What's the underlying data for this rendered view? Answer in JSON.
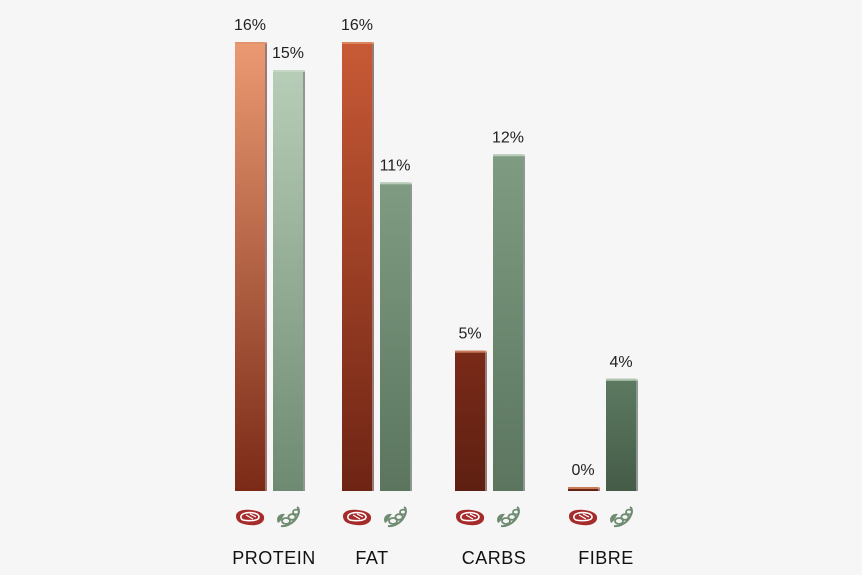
{
  "chart_data": {
    "type": "bar",
    "categories": [
      "PROTEIN",
      "FAT",
      "CARBS",
      "FIBRE"
    ],
    "series": [
      {
        "icon": "steak-icon",
        "values": [
          16,
          16,
          5,
          0
        ],
        "labels": [
          "16%",
          "16%",
          "5%",
          "0%"
        ]
      },
      {
        "icon": "soybean-icon",
        "values": [
          15,
          11,
          12,
          4
        ],
        "labels": [
          "15%",
          "11%",
          "12%",
          "4%"
        ]
      }
    ],
    "ylim": [
      0,
      16
    ],
    "grid": false,
    "colors": {
      "meat_top": "#e8956e",
      "meat_bottom": "#6e2414",
      "meat_icon": "#a62b2b",
      "plant_top": "#b8cdb8",
      "plant_bottom": "#4d634f",
      "plant_icon": "#6f8c72"
    }
  }
}
